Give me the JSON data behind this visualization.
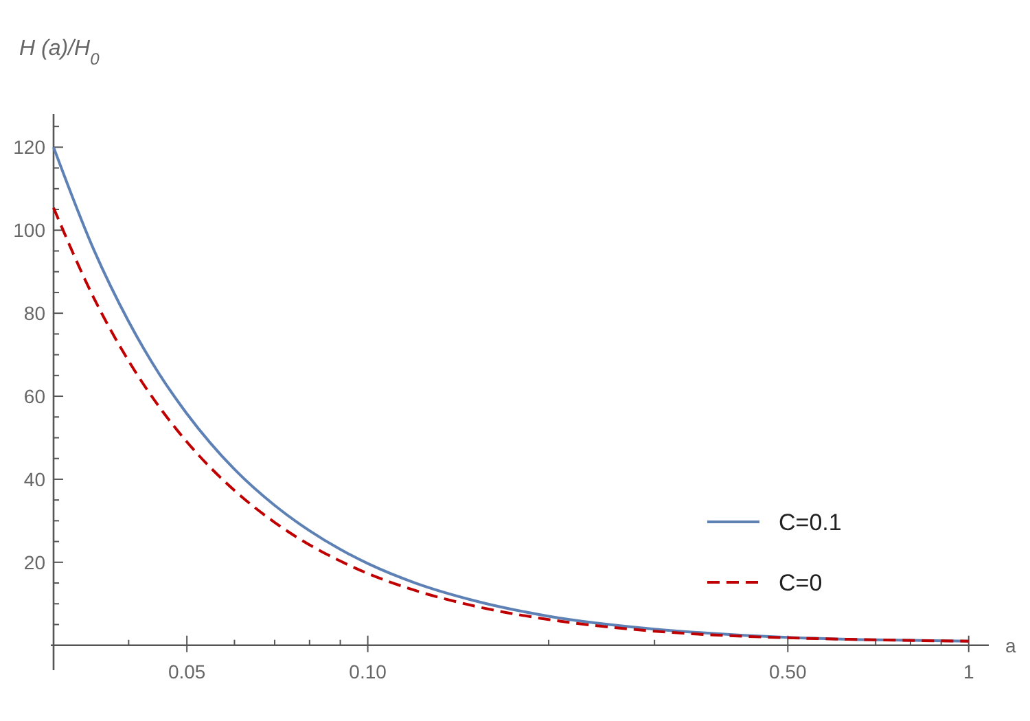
{
  "chart_data": {
    "type": "line",
    "xlabel": "a",
    "ylabel": "H (a)/H$_{0}$",
    "log": "x",
    "xlim": [
      0.03,
      1.08
    ],
    "ylim": [
      -6,
      128
    ],
    "xticks": [
      {
        "value": 0.04,
        "label": null
      },
      0.05,
      {
        "value": 0.06,
        "label": null
      },
      {
        "value": 0.07,
        "label": null
      },
      {
        "value": 0.08,
        "label": null
      },
      {
        "value": 0.09,
        "label": null
      },
      {
        "value": 0.1,
        "label": "0.10"
      },
      {
        "value": 0.2,
        "label": null
      },
      {
        "value": 0.3,
        "label": null
      },
      {
        "value": 0.5,
        "label": "0.50"
      },
      {
        "value": 0.7,
        "label": null
      },
      {
        "value": 0.8,
        "label": null
      },
      {
        "value": 0.9,
        "label": null
      },
      1
    ],
    "yticks": [
      {
        "value": 5,
        "label": null
      },
      {
        "value": 10,
        "label": null
      },
      {
        "value": 15,
        "label": null
      },
      20,
      {
        "value": 25,
        "label": null
      },
      {
        "value": 30,
        "label": null
      },
      {
        "value": 35,
        "label": null
      },
      40,
      {
        "value": 45,
        "label": null
      },
      {
        "value": 50,
        "label": null
      },
      {
        "value": 55,
        "label": null
      },
      60,
      {
        "value": 65,
        "label": null
      },
      {
        "value": 70,
        "label": null
      },
      {
        "value": 75,
        "label": null
      },
      80,
      {
        "value": 85,
        "label": null
      },
      {
        "value": 90,
        "label": null
      },
      {
        "value": 95,
        "label": null
      },
      100,
      {
        "value": 105,
        "label": null
      },
      {
        "value": 110,
        "label": null
      },
      {
        "value": 115,
        "label": null
      },
      120,
      {
        "value": 125,
        "label": null
      }
    ],
    "x": [
      0.03,
      0.035,
      0.04,
      0.045,
      0.05,
      0.06,
      0.07,
      0.08,
      0.09,
      0.1,
      0.12,
      0.15,
      0.2,
      0.3,
      0.4,
      0.5,
      0.7,
      1
    ],
    "series": [
      {
        "name": "C=0.1",
        "color": "#5e81b5",
        "line_style": "solid",
        "values": [
          120.0,
          95.3,
          78.0,
          65.3,
          55.8,
          42.4,
          33.7,
          27.6,
          23.1,
          19.7,
          15.0,
          10.8,
          7.0,
          3.9,
          2.6,
          1.9,
          1.3,
          1.0
        ]
      },
      {
        "name": "C=0",
        "color": "#c00000",
        "line_style": "dashed",
        "values": [
          105.4,
          83.7,
          68.5,
          57.4,
          49.0,
          37.3,
          29.6,
          24.2,
          20.3,
          17.3,
          13.2,
          9.5,
          6.2,
          3.4,
          2.3,
          1.8,
          1.3,
          1.0
        ]
      }
    ],
    "legend": "bottom right",
    "grid": false
  }
}
